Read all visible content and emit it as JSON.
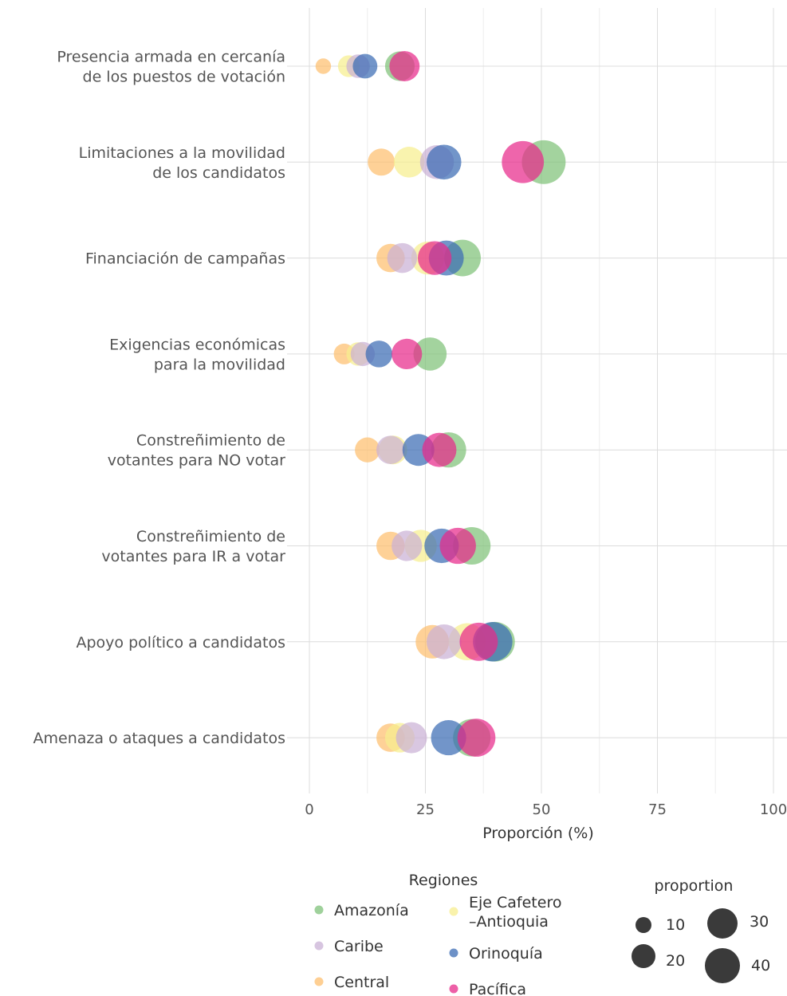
{
  "chart_data": {
    "type": "scatter",
    "title": "",
    "xlabel": "Proporción (%)",
    "ylabel": "",
    "xlim": [
      0,
      100
    ],
    "xticks": [
      0,
      25,
      50,
      75,
      100
    ],
    "grid": true,
    "categories": [
      [
        "Presencia armada en cercanía",
        "de los puestos de votación"
      ],
      [
        "Limitaciones a la movilidad",
        "de los candidatos"
      ],
      [
        "Financiación de campañas"
      ],
      [
        "Exigencias económicas",
        "para la movilidad"
      ],
      [
        "Constreñimiento de",
        "votantes para NO votar"
      ],
      [
        "Constreñimiento de",
        "votantes para IR a votar"
      ],
      [
        "Apoyo político a candidatos"
      ],
      [
        "Amenaza o ataques a candidatos"
      ]
    ],
    "series": [
      {
        "name": "Central",
        "color": "#FDBF6F",
        "values": [
          3,
          15.5,
          17.5,
          7.5,
          12.5,
          17.5,
          26.5,
          17.5
        ]
      },
      {
        "name": "Eje Cafetero\n–Antioquia",
        "color": "#F7EE8F",
        "values": [
          8.5,
          21.5,
          25.5,
          10.5,
          18,
          24,
          34,
          19.5
        ]
      },
      {
        "name": "Caribe",
        "color": "#CAB2D6",
        "values": [
          10.5,
          27.5,
          20,
          11.5,
          17.5,
          21,
          29,
          22
        ]
      },
      {
        "name": "Amazonía",
        "color": "#7FC279",
        "values": [
          19.5,
          50.5,
          33,
          26,
          30,
          35,
          40,
          35
        ]
      },
      {
        "name": "Orinoquía",
        "color": "#3C6CB4",
        "values": [
          12,
          29,
          29.5,
          15,
          23.5,
          28.5,
          39.5,
          30
        ]
      },
      {
        "name": "Pacífica",
        "color": "#E7298A",
        "values": [
          20.5,
          46,
          27,
          21,
          28,
          32,
          36.5,
          36
        ]
      }
    ],
    "legend": {
      "color_title": "Regiones",
      "color_items": [
        "Amazonía",
        "Caribe",
        "Central",
        "Eje Cafetero\n–Antioquia",
        "Orinoquía",
        "Pacífica"
      ],
      "size_title": "proportion",
      "size_items": [
        10,
        20,
        30,
        40
      ],
      "position": "bottom"
    }
  }
}
